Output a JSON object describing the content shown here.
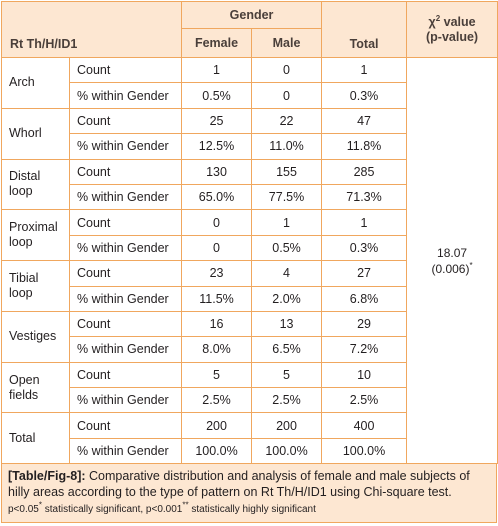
{
  "table": {
    "row_header": "Rt Th/H/ID1",
    "group_header": "Gender",
    "columns": [
      "Female",
      "Male",
      "Total"
    ],
    "chi_header_sym": "χ",
    "chi_header_sup": "2",
    "chi_header_rest": " value",
    "chi_header_line2": "(p-value)",
    "chi_value": "18.07",
    "chi_p": "(0.006)",
    "chi_p_mark": "*",
    "groups": [
      {
        "name_lines": [
          "Arch"
        ],
        "count": [
          "1",
          "0",
          "1"
        ],
        "pct": [
          "0.5%",
          "0",
          "0.3%"
        ]
      },
      {
        "name_lines": [
          "Whorl"
        ],
        "count": [
          "25",
          "22",
          "47"
        ],
        "pct": [
          "12.5%",
          "11.0%",
          "11.8%"
        ]
      },
      {
        "name_lines": [
          "Distal",
          "loop"
        ],
        "count": [
          "130",
          "155",
          "285"
        ],
        "pct": [
          "65.0%",
          "77.5%",
          "71.3%"
        ]
      },
      {
        "name_lines": [
          "Proximal",
          "loop"
        ],
        "count": [
          "0",
          "1",
          "1"
        ],
        "pct": [
          "0",
          "0.5%",
          "0.3%"
        ]
      },
      {
        "name_lines": [
          "Tibial",
          "loop"
        ],
        "count": [
          "23",
          "4",
          "27"
        ],
        "pct": [
          "11.5%",
          "2.0%",
          "6.8%"
        ]
      },
      {
        "name_lines": [
          "Vestiges"
        ],
        "count": [
          "16",
          "13",
          "29"
        ],
        "pct": [
          "8.0%",
          "6.5%",
          "7.2%"
        ]
      },
      {
        "name_lines": [
          "Open",
          "fields"
        ],
        "count": [
          "5",
          "5",
          "10"
        ],
        "pct": [
          "2.5%",
          "2.5%",
          "2.5%"
        ]
      },
      {
        "name_lines": [
          "Total"
        ],
        "count": [
          "200",
          "200",
          "400"
        ],
        "pct": [
          "100.0%",
          "100.0%",
          "100.0%"
        ]
      }
    ],
    "stat_labels": {
      "count": "Count",
      "pct": "% within Gender"
    }
  },
  "caption": {
    "label": "[Table/Fig-8]:",
    "text": " Comparative distribution and analysis of female and male subjects of hilly areas according to the type of pattern on Rt Th/H/ID1 using Chi-square test.",
    "note_a": "p<0.05",
    "note_a_mark": "*",
    "note_a_text": " statistically significant, p<0.001",
    "note_b_mark": "**",
    "note_b_text": " statistically highly significant"
  },
  "colors": {
    "border": "#f0a75e",
    "header_bg": "#fde7d2"
  }
}
